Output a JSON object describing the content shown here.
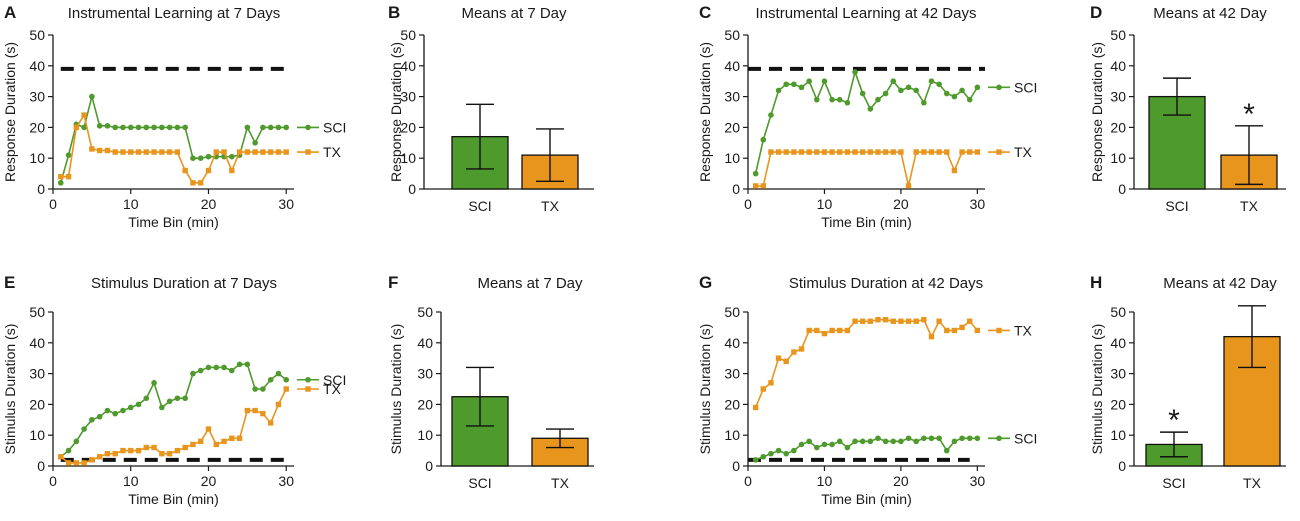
{
  "colors": {
    "sci": "#4e9a2c",
    "tx": "#e8951e",
    "axis": "#1a1a1a"
  },
  "panels": [
    {
      "id": "A",
      "kind": "line",
      "title": "Instrumental Learning at 7 Days",
      "xlabel": "Time Bin (min)",
      "ylabel": "Response Duration (s)",
      "xlim": [
        0,
        31
      ],
      "xticks": [
        0,
        10,
        20,
        30
      ],
      "ylim": [
        0,
        50
      ],
      "yticks": [
        0,
        10,
        20,
        30,
        40,
        50
      ],
      "dash_y": 39,
      "dash_x": [
        1,
        30
      ],
      "series": [
        {
          "name": "SCI",
          "color_key": "sci",
          "marker": "circle",
          "label_side": "right",
          "values": [
            2,
            11,
            21,
            20,
            30,
            20.5,
            20.5,
            20,
            20,
            20,
            20,
            20,
            20,
            20,
            20,
            20,
            20,
            10,
            10,
            10.5,
            10.5,
            10.5,
            10.5,
            11,
            20,
            15,
            20,
            20,
            20,
            20
          ]
        },
        {
          "name": "TX",
          "color_key": "tx",
          "marker": "square",
          "label_side": "right",
          "values": [
            4,
            4,
            20,
            24,
            13,
            12.5,
            12.5,
            12,
            12,
            12,
            12,
            12,
            12,
            12,
            12,
            12,
            6,
            2,
            2,
            6,
            12,
            12,
            6,
            12,
            12,
            12,
            12,
            12,
            12,
            12
          ]
        }
      ]
    },
    {
      "id": "B",
      "kind": "bar",
      "title": "Means at 7 Day",
      "xlabel": "",
      "ylabel": "Response Duration (s)",
      "ylim": [
        0,
        50
      ],
      "yticks": [
        0,
        10,
        20,
        30,
        40,
        50
      ],
      "bars": [
        {
          "label": "SCI",
          "color_key": "sci",
          "value": 17,
          "err": 10.5,
          "star": ""
        },
        {
          "label": "TX",
          "color_key": "tx",
          "value": 11,
          "err": 8.5,
          "star": ""
        }
      ]
    },
    {
      "id": "C",
      "kind": "line",
      "title": "Instrumental Learning at 42 Days",
      "xlabel": "Time Bin (min)",
      "ylabel": "Response Duration (s)",
      "xlim": [
        0,
        31
      ],
      "xticks": [
        0,
        10,
        20,
        30
      ],
      "ylim": [
        0,
        50
      ],
      "yticks": [
        0,
        10,
        20,
        30,
        40,
        50
      ],
      "dash_y": 39,
      "dash_x": [
        0,
        31
      ],
      "series": [
        {
          "name": "SCI",
          "color_key": "sci",
          "marker": "circle",
          "label_side": "right",
          "values": [
            5,
            16,
            24,
            32,
            34,
            34,
            33,
            35,
            29,
            35,
            29,
            29,
            28,
            38,
            31,
            26,
            29,
            31,
            35,
            32,
            33,
            32,
            28,
            35,
            34,
            31,
            30,
            32,
            29,
            33
          ]
        },
        {
          "name": "TX",
          "color_key": "tx",
          "marker": "square",
          "label_side": "right",
          "values": [
            1,
            1,
            12,
            12,
            12,
            12,
            12,
            12,
            12,
            12,
            12,
            12,
            12,
            12,
            12,
            12,
            12,
            12,
            12,
            12,
            1,
            12,
            12,
            12,
            12,
            12,
            6,
            12,
            12,
            12
          ]
        }
      ]
    },
    {
      "id": "D",
      "kind": "bar",
      "title": "Means at 42 Day",
      "xlabel": "",
      "ylabel": "Response Duration (s)",
      "ylim": [
        0,
        50
      ],
      "yticks": [
        0,
        10,
        20,
        30,
        40,
        50
      ],
      "bars": [
        {
          "label": "SCI",
          "color_key": "sci",
          "value": 30,
          "err": 6,
          "star": ""
        },
        {
          "label": "TX",
          "color_key": "tx",
          "value": 11,
          "err": 9.5,
          "star": "*"
        }
      ]
    },
    {
      "id": "E",
      "kind": "line",
      "title": "Stimulus Duration at 7 Days",
      "xlabel": "Time Bin (min)",
      "ylabel": "Stimulus Duration (s)",
      "xlim": [
        0,
        31
      ],
      "xticks": [
        0,
        10,
        20,
        30
      ],
      "ylim": [
        0,
        50
      ],
      "yticks": [
        0,
        10,
        20,
        30,
        40,
        50
      ],
      "dash_y": 2,
      "dash_x": [
        1,
        30
      ],
      "series": [
        {
          "name": "SCI",
          "color_key": "sci",
          "marker": "circle",
          "label_side": "right",
          "values": [
            3,
            5,
            8,
            12,
            15,
            16,
            18,
            17,
            18,
            19,
            20,
            22,
            27,
            19,
            21,
            22,
            22,
            30,
            31,
            32,
            32,
            32,
            31,
            33,
            33,
            25,
            25,
            28,
            30,
            28
          ]
        },
        {
          "name": "TX",
          "color_key": "tx",
          "marker": "square",
          "label_side": "right",
          "values": [
            3,
            1,
            1,
            1,
            2,
            3,
            4,
            4,
            5,
            5,
            5,
            6,
            6,
            4,
            4,
            5,
            6,
            7,
            8,
            12,
            7,
            8,
            9,
            9,
            18,
            18,
            17,
            14,
            20,
            25
          ]
        }
      ]
    },
    {
      "id": "F",
      "kind": "bar",
      "title": "Means at 7 Day",
      "xlabel": "",
      "ylabel": "Stimulus Duration (s)",
      "ylim": [
        0,
        50
      ],
      "yticks": [
        0,
        10,
        20,
        30,
        40,
        50
      ],
      "bars": [
        {
          "label": "SCI",
          "color_key": "sci",
          "value": 22.5,
          "err": 9.5,
          "star": ""
        },
        {
          "label": "TX",
          "color_key": "tx",
          "value": 9,
          "err": 3,
          "star": ""
        }
      ]
    },
    {
      "id": "G",
      "kind": "line",
      "title": "Stimulus Duration at 42 Days",
      "xlabel": "Time Bin (min)",
      "ylabel": "Stimulus Duration (s)",
      "xlim": [
        0,
        31
      ],
      "xticks": [
        0,
        10,
        20,
        30
      ],
      "ylim": [
        0,
        50
      ],
      "yticks": [
        0,
        10,
        20,
        30,
        40,
        50
      ],
      "dash_y": 2,
      "dash_x": [
        0,
        29
      ],
      "series": [
        {
          "name": "TX",
          "color_key": "tx",
          "marker": "square",
          "label_side": "right",
          "values": [
            19,
            25,
            27,
            35,
            34,
            37,
            38,
            44,
            44,
            43,
            44,
            44,
            44,
            47,
            47,
            47,
            47.5,
            47.5,
            47,
            47,
            47,
            47,
            47.5,
            42,
            47,
            44,
            44,
            45,
            47,
            44
          ]
        },
        {
          "name": "SCI",
          "color_key": "sci",
          "marker": "circle",
          "label_side": "right",
          "values": [
            2,
            3,
            4,
            5,
            4,
            5,
            7,
            8,
            6,
            7,
            7,
            8,
            6,
            8,
            8,
            8,
            9,
            8,
            8,
            8,
            9,
            8,
            9,
            9,
            9,
            5,
            8,
            9,
            9,
            9
          ]
        }
      ]
    },
    {
      "id": "H",
      "kind": "bar",
      "title": "Means at 42 Day",
      "xlabel": "",
      "ylabel": "Stimulus Duration (s)",
      "ylim": [
        0,
        50
      ],
      "yticks": [
        0,
        10,
        20,
        30,
        40,
        50
      ],
      "bars": [
        {
          "label": "SCI",
          "color_key": "sci",
          "value": 7,
          "err": 4,
          "star": "*"
        },
        {
          "label": "TX",
          "color_key": "tx",
          "value": 42,
          "err": 10,
          "star": ""
        }
      ]
    }
  ],
  "chart_data": [
    {
      "type": "line",
      "title": "Instrumental Learning at 7 Days",
      "xlabel": "Time Bin (min)",
      "ylabel": "Response Duration (s)",
      "xlim": [
        0,
        31
      ],
      "ylim": [
        0,
        50
      ],
      "x": "1..30",
      "series": [
        {
          "name": "SCI"
        },
        {
          "name": "TX"
        }
      ],
      "criterion_line": 39
    },
    {
      "type": "bar",
      "title": "Means at 7 Day",
      "categories": [
        "SCI",
        "TX"
      ],
      "values": [
        17,
        11
      ],
      "errors": [
        10.5,
        8.5
      ],
      "ylabel": "Response Duration (s)",
      "ylim": [
        0,
        50
      ]
    },
    {
      "type": "line",
      "title": "Instrumental Learning at 42 Days",
      "xlabel": "Time Bin (min)",
      "ylabel": "Response Duration (s)",
      "xlim": [
        0,
        31
      ],
      "ylim": [
        0,
        50
      ],
      "series": [
        {
          "name": "SCI"
        },
        {
          "name": "TX"
        }
      ],
      "criterion_line": 39
    },
    {
      "type": "bar",
      "title": "Means at 42 Day",
      "categories": [
        "SCI",
        "TX"
      ],
      "values": [
        30,
        11
      ],
      "errors": [
        6,
        9.5
      ],
      "ylabel": "Response Duration (s)",
      "ylim": [
        0,
        50
      ],
      "significance": "TX *"
    },
    {
      "type": "line",
      "title": "Stimulus Duration at 7 Days",
      "xlabel": "Time Bin (min)",
      "ylabel": "Stimulus Duration (s)",
      "xlim": [
        0,
        31
      ],
      "ylim": [
        0,
        50
      ],
      "series": [
        {
          "name": "SCI"
        },
        {
          "name": "TX"
        }
      ],
      "criterion_line": 2
    },
    {
      "type": "bar",
      "title": "Means at 7 Day",
      "categories": [
        "SCI",
        "TX"
      ],
      "values": [
        22.5,
        9
      ],
      "errors": [
        9.5,
        3
      ],
      "ylabel": "Stimulus Duration (s)",
      "ylim": [
        0,
        50
      ]
    },
    {
      "type": "line",
      "title": "Stimulus Duration at 42 Days",
      "xlabel": "Time Bin (min)",
      "ylabel": "Stimulus Duration (s)",
      "xlim": [
        0,
        31
      ],
      "ylim": [
        0,
        50
      ],
      "series": [
        {
          "name": "TX"
        },
        {
          "name": "SCI"
        }
      ],
      "criterion_line": 2
    },
    {
      "type": "bar",
      "title": "Means at 42 Day",
      "categories": [
        "SCI",
        "TX"
      ],
      "values": [
        7,
        42
      ],
      "errors": [
        4,
        10
      ],
      "ylabel": "Stimulus Duration (s)",
      "ylim": [
        0,
        50
      ],
      "significance": "SCI *"
    }
  ]
}
